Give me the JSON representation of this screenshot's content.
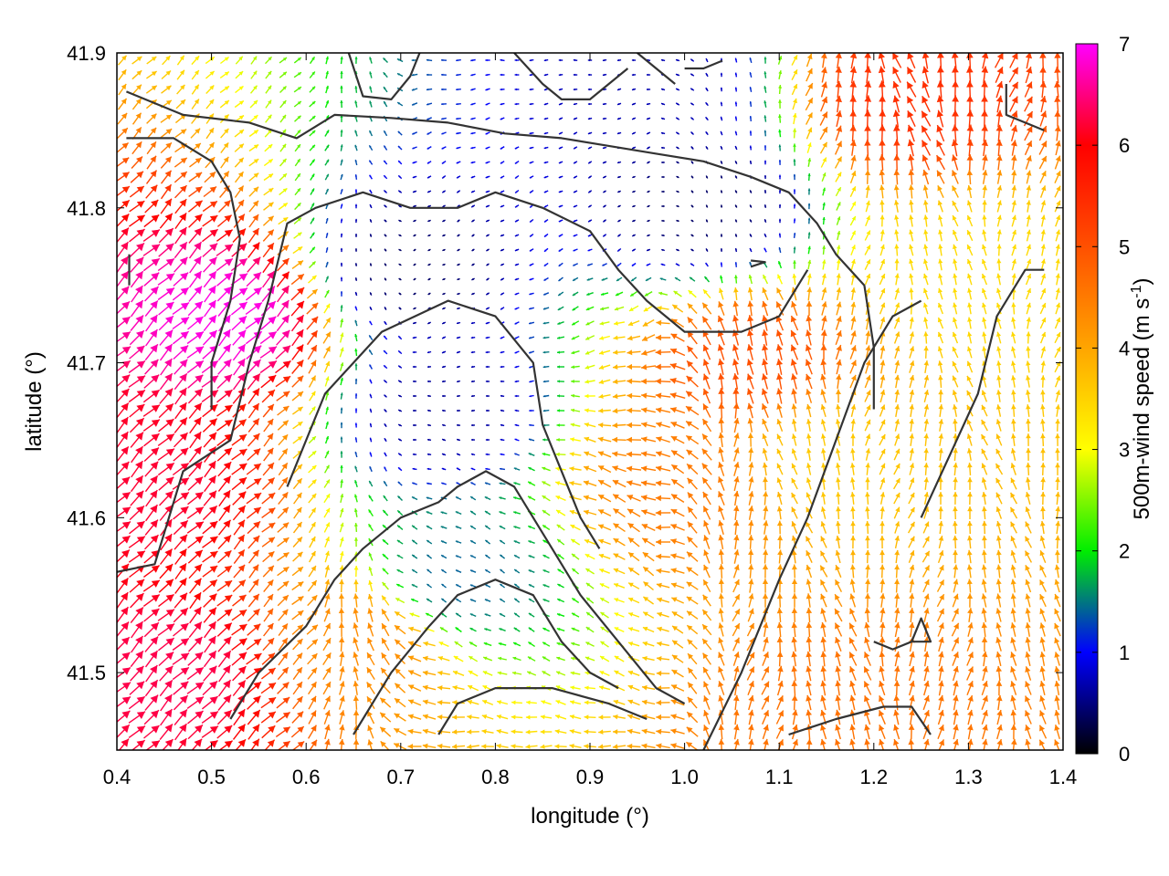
{
  "chart_data": {
    "type": "vector-field",
    "xlabel": "longitude (°)",
    "ylabel": "latitude (°)",
    "colorbar_label_main": "500m-wind speed (m s",
    "colorbar_label_sup": "-1",
    "colorbar_label_end": ")",
    "xlim": [
      0.4,
      1.4
    ],
    "ylim": [
      41.45,
      41.9
    ],
    "x_ticks": [
      {
        "value": 0.4,
        "label": "0.4"
      },
      {
        "value": 0.5,
        "label": "0.5"
      },
      {
        "value": 0.6,
        "label": "0.6"
      },
      {
        "value": 0.7,
        "label": "0.7"
      },
      {
        "value": 0.8,
        "label": "0.8"
      },
      {
        "value": 0.9,
        "label": "0.9"
      },
      {
        "value": 1.0,
        "label": "1.0"
      },
      {
        "value": 1.1,
        "label": "1.1"
      },
      {
        "value": 1.2,
        "label": "1.2"
      },
      {
        "value": 1.3,
        "label": "1.3"
      },
      {
        "value": 1.4,
        "label": "1.4"
      }
    ],
    "y_ticks": [
      {
        "value": 41.5,
        "label": "41.5"
      },
      {
        "value": 41.6,
        "label": "41.6"
      },
      {
        "value": 41.7,
        "label": "41.7"
      },
      {
        "value": 41.8,
        "label": "41.8"
      },
      {
        "value": 41.9,
        "label": "41.9"
      }
    ],
    "colorbar": {
      "range": [
        0,
        7
      ],
      "ticks": [
        {
          "value": 0,
          "label": "0"
        },
        {
          "value": 1,
          "label": "1"
        },
        {
          "value": 2,
          "label": "2"
        },
        {
          "value": 3,
          "label": "3"
        },
        {
          "value": 4,
          "label": "4"
        },
        {
          "value": 5,
          "label": "5"
        },
        {
          "value": 6,
          "label": "6"
        },
        {
          "value": 7,
          "label": "7"
        }
      ],
      "stops": [
        {
          "value": 0,
          "color": "#000000"
        },
        {
          "value": 1,
          "color": "#0000ff"
        },
        {
          "value": 2,
          "color": "#00ee00"
        },
        {
          "value": 3,
          "color": "#ffff00"
        },
        {
          "value": 4,
          "color": "#ffa500"
        },
        {
          "value": 5,
          "color": "#ff5000"
        },
        {
          "value": 6,
          "color": "#ff0000"
        },
        {
          "value": 7,
          "color": "#ff00ff"
        }
      ]
    },
    "speed_centers": [
      {
        "lon": 0.52,
        "lat": 41.73,
        "speed": 6.9
      },
      {
        "lon": 0.43,
        "lat": 41.62,
        "speed": 6.2
      },
      {
        "lon": 0.46,
        "lat": 41.5,
        "speed": 6.3
      },
      {
        "lon": 1.24,
        "lat": 41.87,
        "speed": 5.4
      },
      {
        "lon": 1.07,
        "lat": 41.7,
        "speed": 5.0
      },
      {
        "lon": 1.0,
        "lat": 41.62,
        "speed": 4.5
      },
      {
        "lon": 0.66,
        "lat": 41.52,
        "speed": 4.3
      },
      {
        "lon": 1.16,
        "lat": 41.47,
        "speed": 4.6
      },
      {
        "lon": 1.15,
        "lat": 41.64,
        "speed": 3.6
      },
      {
        "lon": 1.3,
        "lat": 41.76,
        "speed": 3.4
      },
      {
        "lon": 0.97,
        "lat": 41.88,
        "speed": 0.7
      },
      {
        "lon": 0.7,
        "lat": 41.76,
        "speed": 0.4
      },
      {
        "lon": 0.74,
        "lat": 41.67,
        "speed": 0.6
      },
      {
        "lon": 0.76,
        "lat": 41.56,
        "speed": 1.4
      },
      {
        "lon": 1.02,
        "lat": 41.8,
        "speed": 0.4
      }
    ],
    "flow_regimes": [
      {
        "region": "west",
        "direction": "northeast"
      },
      {
        "region": "center",
        "direction": "west"
      },
      {
        "region": "east",
        "direction": "north"
      }
    ],
    "contours": [
      [
        [
          0.41,
          41.875
        ],
        [
          0.47,
          41.86
        ],
        [
          0.54,
          41.855
        ],
        [
          0.59,
          41.845
        ],
        [
          0.63,
          41.86
        ],
        [
          0.69,
          41.858
        ],
        [
          0.75,
          41.855
        ],
        [
          0.81,
          41.848
        ],
        [
          0.87,
          41.845
        ],
        [
          0.92,
          41.84
        ],
        [
          0.97,
          41.835
        ],
        [
          1.02,
          41.83
        ],
        [
          1.07,
          41.82
        ],
        [
          1.11,
          41.81
        ],
        [
          1.14,
          41.79
        ],
        [
          1.16,
          41.77
        ],
        [
          1.19,
          41.75
        ],
        [
          1.2,
          41.71
        ],
        [
          1.2,
          41.67
        ]
      ],
      [
        [
          0.41,
          41.845
        ],
        [
          0.46,
          41.845
        ],
        [
          0.5,
          41.83
        ],
        [
          0.52,
          41.81
        ],
        [
          0.53,
          41.78
        ],
        [
          0.52,
          41.74
        ],
        [
          0.5,
          41.7
        ],
        [
          0.5,
          41.67
        ]
      ],
      [
        [
          0.413,
          41.77
        ],
        [
          0.413,
          41.75
        ]
      ],
      [
        [
          0.645,
          41.9
        ],
        [
          0.66,
          41.872
        ],
        [
          0.69,
          41.87
        ],
        [
          0.71,
          41.885
        ],
        [
          0.72,
          41.9
        ]
      ],
      [
        [
          0.82,
          41.9
        ],
        [
          0.85,
          41.88
        ],
        [
          0.87,
          41.87
        ],
        [
          0.9,
          41.87
        ],
        [
          0.94,
          41.89
        ]
      ],
      [
        [
          0.95,
          41.9
        ],
        [
          0.97,
          41.89
        ],
        [
          0.99,
          41.88
        ]
      ],
      [
        [
          1.0,
          41.89
        ],
        [
          1.02,
          41.89
        ],
        [
          1.04,
          41.895
        ]
      ],
      [
        [
          1.34,
          41.88
        ],
        [
          1.34,
          41.86
        ],
        [
          1.38,
          41.85
        ]
      ],
      [
        [
          0.58,
          41.62
        ],
        [
          0.62,
          41.68
        ],
        [
          0.68,
          41.72
        ],
        [
          0.75,
          41.74
        ],
        [
          0.8,
          41.73
        ],
        [
          0.84,
          41.7
        ],
        [
          0.85,
          41.66
        ],
        [
          0.87,
          41.63
        ],
        [
          0.89,
          41.6
        ],
        [
          0.91,
          41.58
        ]
      ],
      [
        [
          0.4,
          41.565
        ],
        [
          0.44,
          41.57
        ],
        [
          0.47,
          41.63
        ],
        [
          0.52,
          41.65
        ],
        [
          0.54,
          41.7
        ],
        [
          0.56,
          41.74
        ],
        [
          0.58,
          41.79
        ],
        [
          0.61,
          41.8
        ],
        [
          0.66,
          41.81
        ],
        [
          0.71,
          41.8
        ],
        [
          0.76,
          41.8
        ],
        [
          0.8,
          41.81
        ],
        [
          0.85,
          41.8
        ],
        [
          0.9,
          41.785
        ],
        [
          0.93,
          41.76
        ],
        [
          0.96,
          41.74
        ],
        [
          1.0,
          41.72
        ],
        [
          1.03,
          41.72
        ],
        [
          1.06,
          41.72
        ],
        [
          1.1,
          41.73
        ],
        [
          1.13,
          41.76
        ]
      ],
      [
        [
          0.52,
          41.47
        ],
        [
          0.55,
          41.5
        ],
        [
          0.6,
          41.53
        ],
        [
          0.63,
          41.56
        ],
        [
          0.66,
          41.58
        ],
        [
          0.7,
          41.6
        ],
        [
          0.74,
          41.61
        ],
        [
          0.76,
          41.62
        ],
        [
          0.79,
          41.63
        ],
        [
          0.82,
          41.62
        ],
        [
          0.86,
          41.58
        ],
        [
          0.89,
          41.55
        ],
        [
          0.93,
          41.52
        ],
        [
          0.97,
          41.49
        ],
        [
          1.0,
          41.48
        ]
      ],
      [
        [
          0.65,
          41.46
        ],
        [
          0.69,
          41.5
        ],
        [
          0.73,
          41.53
        ],
        [
          0.76,
          41.55
        ],
        [
          0.8,
          41.56
        ],
        [
          0.84,
          41.55
        ],
        [
          0.87,
          41.52
        ],
        [
          0.9,
          41.5
        ],
        [
          0.93,
          41.49
        ]
      ],
      [
        [
          0.74,
          41.46
        ],
        [
          0.76,
          41.48
        ],
        [
          0.8,
          41.49
        ],
        [
          0.86,
          41.49
        ],
        [
          0.92,
          41.48
        ],
        [
          0.96,
          41.47
        ]
      ],
      [
        [
          1.02,
          41.45
        ],
        [
          1.06,
          41.5
        ],
        [
          1.1,
          41.56
        ],
        [
          1.13,
          41.6
        ],
        [
          1.16,
          41.65
        ],
        [
          1.19,
          41.7
        ],
        [
          1.22,
          41.73
        ],
        [
          1.25,
          41.74
        ]
      ],
      [
        [
          1.25,
          41.6
        ],
        [
          1.28,
          41.64
        ],
        [
          1.31,
          41.68
        ],
        [
          1.33,
          41.73
        ],
        [
          1.36,
          41.76
        ],
        [
          1.38,
          41.76
        ]
      ],
      [
        [
          1.2,
          41.52
        ],
        [
          1.22,
          41.515
        ],
        [
          1.24,
          41.52
        ],
        [
          1.26,
          41.52
        ],
        [
          1.25,
          41.535
        ],
        [
          1.24,
          41.52
        ]
      ],
      [
        [
          1.11,
          41.46
        ],
        [
          1.16,
          41.47
        ],
        [
          1.21,
          41.478
        ],
        [
          1.24,
          41.478
        ],
        [
          1.26,
          41.46
        ]
      ],
      [
        [
          1.07,
          41.766
        ],
        [
          1.085,
          41.765
        ],
        [
          1.07,
          41.762
        ]
      ]
    ]
  }
}
